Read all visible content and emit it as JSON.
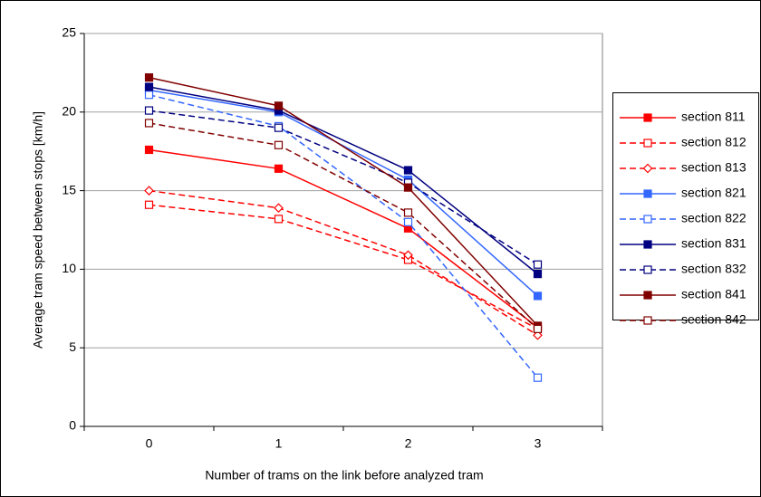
{
  "chart_data": {
    "type": "line",
    "x_label": "Number of trams on the link before analyzed tram",
    "y_label": "Average tram speed between stops [km/h]",
    "categories": [
      "0",
      "1",
      "2",
      "3"
    ],
    "ylim": [
      0,
      25
    ],
    "yticks": [
      0,
      5,
      10,
      15,
      20,
      25
    ],
    "grid": true,
    "legend": "right",
    "series": [
      {
        "name": "section 811",
        "color": "#ff0000",
        "dash": false,
        "marker": "square-filled",
        "values": [
          17.6,
          16.4,
          12.6,
          6.3
        ]
      },
      {
        "name": "section 812",
        "color": "#ff0000",
        "dash": true,
        "marker": "square-open",
        "values": [
          14.1,
          13.2,
          10.6,
          6.2
        ]
      },
      {
        "name": "section 813",
        "color": "#ff0000",
        "dash": true,
        "marker": "diamond-open",
        "values": [
          15.0,
          13.9,
          10.9,
          5.8
        ]
      },
      {
        "name": "section 821",
        "color": "#3366ff",
        "dash": false,
        "marker": "square-filled",
        "values": [
          21.4,
          20.0,
          15.7,
          8.3
        ]
      },
      {
        "name": "section 822",
        "color": "#3366ff",
        "dash": true,
        "marker": "square-open",
        "values": [
          21.1,
          19.1,
          13.0,
          3.1
        ]
      },
      {
        "name": "section 831",
        "color": "#000080",
        "dash": false,
        "marker": "square-filled",
        "values": [
          21.6,
          20.1,
          16.3,
          9.7
        ]
      },
      {
        "name": "section 832",
        "color": "#000080",
        "dash": true,
        "marker": "square-open",
        "values": [
          20.1,
          19.0,
          15.5,
          10.3
        ]
      },
      {
        "name": "section 841",
        "color": "#800000",
        "dash": false,
        "marker": "square-filled",
        "values": [
          22.2,
          20.4,
          15.2,
          6.4
        ]
      },
      {
        "name": "section 842",
        "color": "#800000",
        "dash": true,
        "marker": "square-open",
        "values": [
          19.3,
          17.9,
          13.6,
          6.2
        ]
      }
    ]
  }
}
